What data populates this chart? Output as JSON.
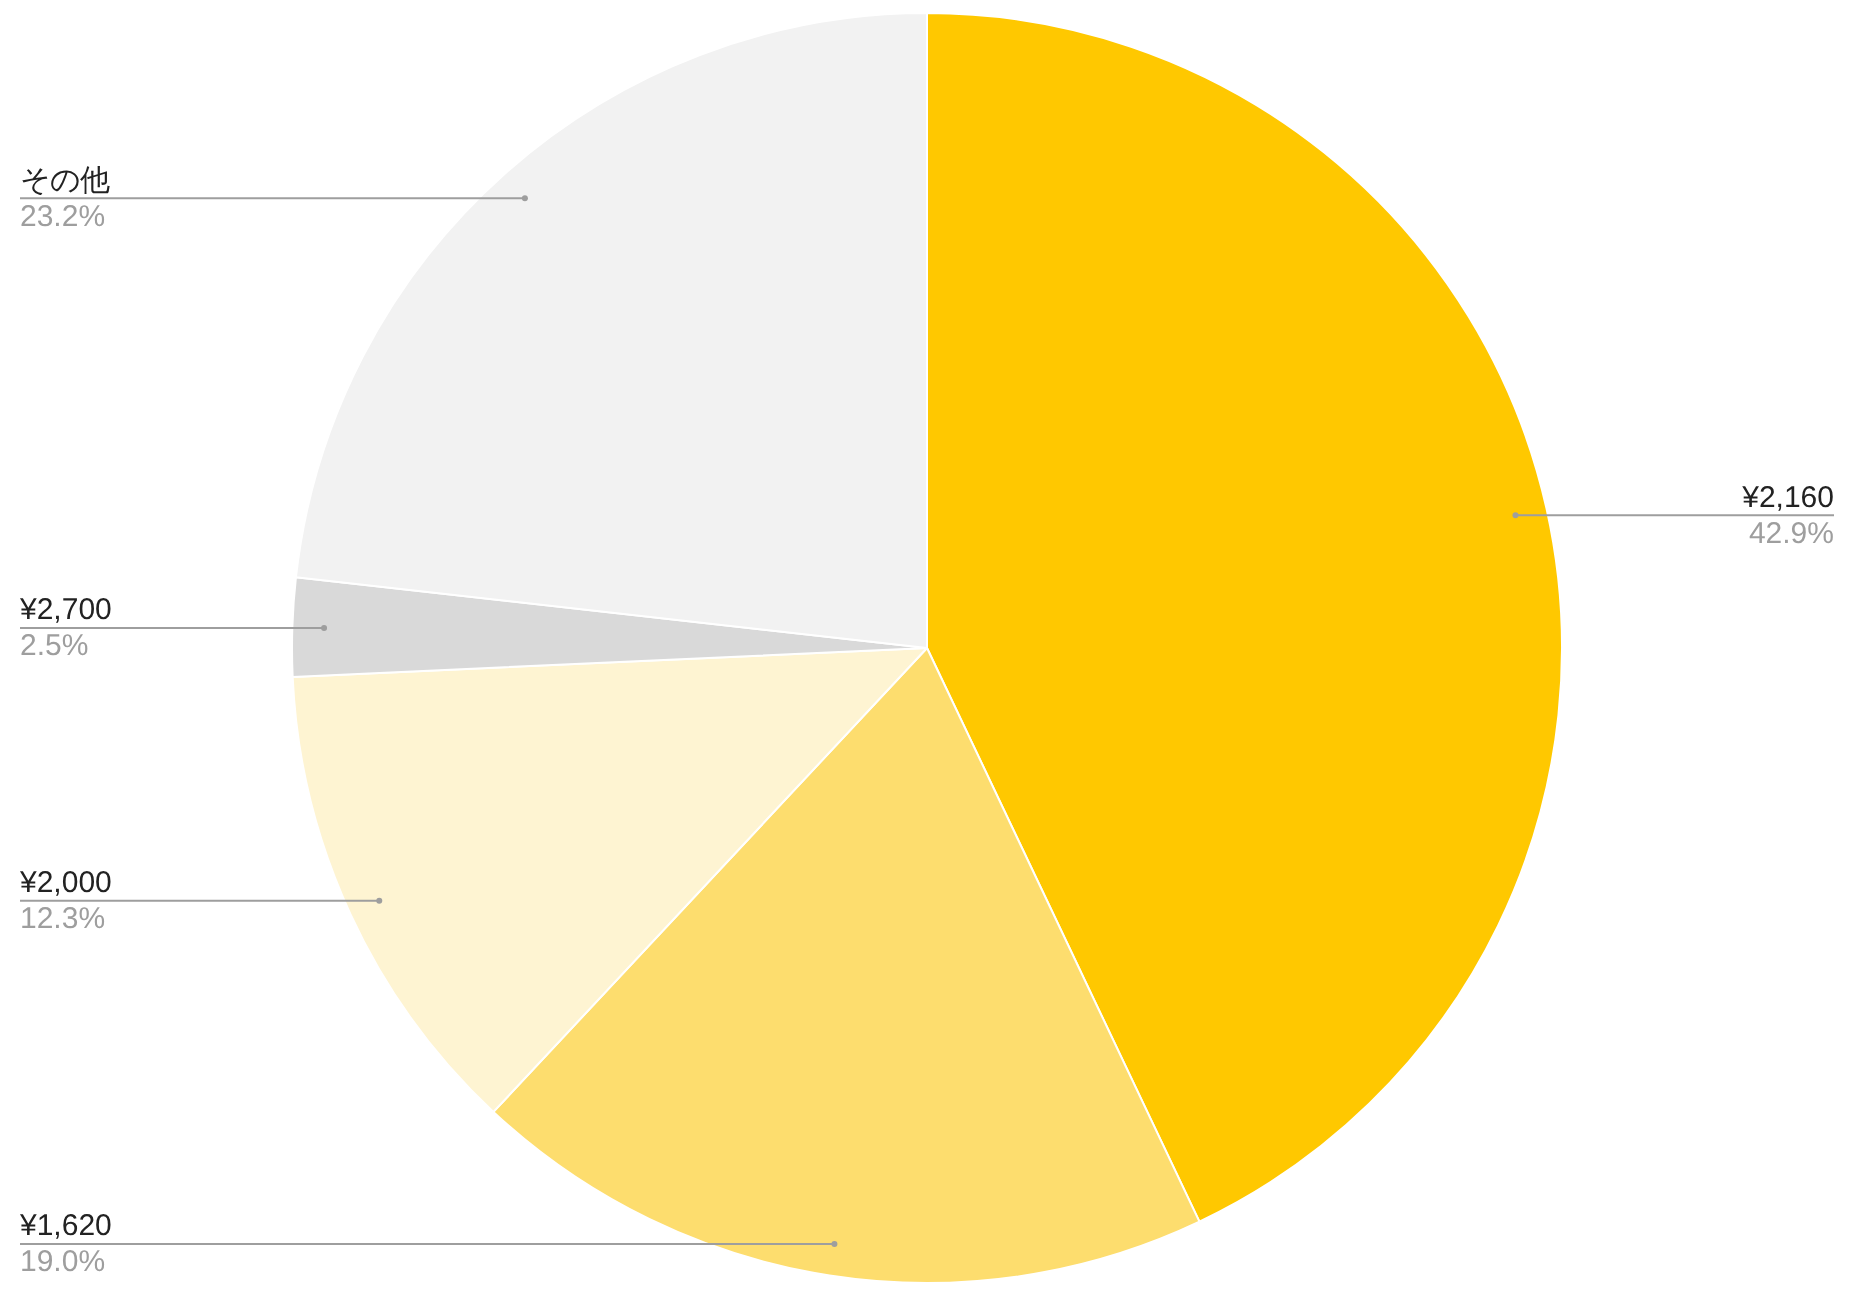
{
  "chart_data": {
    "type": "pie",
    "categories": [
      "¥2,160",
      "¥1,620",
      "¥2,000",
      "¥2,700",
      "その他"
    ],
    "values": [
      42.9,
      19.0,
      12.3,
      2.5,
      23.2
    ],
    "colors": [
      "#ffc800",
      "#fddd6e",
      "#fef4d2",
      "#d9d9d9",
      "#f2f2f2"
    ],
    "value_labels": [
      "42.9%",
      "19.0%",
      "12.3%",
      "2.5%",
      "23.2%"
    ],
    "legend": false
  }
}
